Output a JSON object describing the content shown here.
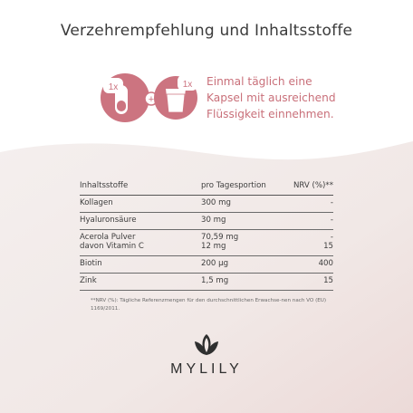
{
  "title": "Verzehrempfehlung und Inhaltsstoffe",
  "dosage": {
    "capsule_count": "1x",
    "glass_count": "1x",
    "plus_symbol": "+",
    "instruction_lines": [
      "Einmal täglich eine",
      "Kapsel mit ausreichend",
      "Flüssigkeit einnehmen."
    ]
  },
  "table": {
    "headers": {
      "name": "Inhaltsstoffe",
      "amount": "pro Tagesportion",
      "nrv": "NRV (%)**"
    },
    "rows": [
      {
        "name": "Kollagen",
        "amount": "300 mg",
        "nrv": "-"
      },
      {
        "name": "Hyaluronsäure",
        "amount": "30 mg",
        "nrv": "-"
      },
      {
        "name": "Acerola Pulver",
        "amount": "70,59 mg",
        "nrv": "-",
        "sub_name": "davon Vitamin C",
        "sub_amount": "12 mg",
        "sub_nrv": "15"
      },
      {
        "name": "Biotin",
        "amount": "200 µg",
        "nrv": "400"
      },
      {
        "name": "Zink",
        "amount": "1,5 mg",
        "nrv": "15"
      }
    ]
  },
  "footnote": "**NRV (%): Tägliche Referenzmengen für den durchschnittlichen Erwachse-nen nach VO (EU) 1169/2011.",
  "brand": {
    "name": "MYLILY"
  },
  "colors": {
    "accent_pink": "#c9707a",
    "text_dark": "#3b3b3b",
    "background_light": "#f3ecea"
  },
  "icons": [
    "capsule-icon",
    "plus-icon",
    "glass-of-water-icon",
    "lotus-logo-icon"
  ]
}
